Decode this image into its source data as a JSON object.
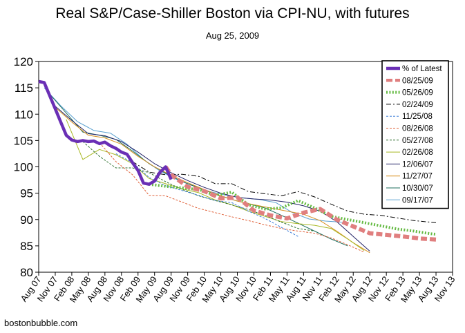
{
  "title": "Real S&P/Case-Shiller Boston via CPI-NU, with futures",
  "subtitle": "Aug 25, 2009",
  "footer": "bostonbubble.com",
  "chart_data": {
    "type": "line",
    "title": "Real S&P/Case-Shiller Boston via CPI-NU, with futures",
    "subtitle": "Aug 25, 2009",
    "xlabel": "",
    "ylabel": "",
    "ylim": [
      80,
      120
    ],
    "yticks": [
      80,
      85,
      90,
      95,
      100,
      105,
      110,
      115,
      120
    ],
    "xticks": [
      "Aug 07",
      "Nov 07",
      "Feb 08",
      "May 08",
      "Aug 08",
      "Nov 08",
      "Feb 09",
      "May 09",
      "Aug 09",
      "Nov 09",
      "Feb 10",
      "May 10",
      "Aug 10",
      "Nov 10",
      "Feb 11",
      "May 11",
      "Aug 11",
      "Nov 11",
      "Feb 12",
      "May 12",
      "Aug 12",
      "Nov 12",
      "Feb 13",
      "May 13",
      "Aug 13",
      "Nov 13"
    ],
    "x_unit": "months since Aug 07",
    "grid": false,
    "legend_position": "top-right",
    "series": [
      {
        "name": "% of Latest",
        "color": "#6a2fb5",
        "style": "solid",
        "width": 4.5,
        "x": [
          0,
          1,
          2,
          3,
          4,
          5,
          6,
          7,
          8,
          9,
          10,
          11,
          12,
          13,
          14,
          15,
          16,
          17,
          18,
          19,
          20,
          21,
          22,
          23,
          24
        ],
        "y": [
          116.2,
          116.0,
          113.5,
          111.0,
          108.5,
          106.0,
          105.1,
          104.8,
          105.0,
          104.8,
          104.9,
          104.4,
          104.7,
          104.0,
          103.5,
          102.8,
          102.4,
          100.8,
          99.3,
          96.9,
          96.7,
          97.3,
          99.0,
          100.0,
          97.6
        ]
      },
      {
        "name": "08/25/09",
        "color": "#e07f7f",
        "style": "dash",
        "width": 6,
        "x": [
          23,
          24,
          27,
          30,
          33,
          36,
          39,
          42,
          45,
          48,
          51,
          54,
          57,
          60,
          63,
          66,
          69,
          72
        ],
        "y": [
          100.0,
          98.5,
          96.2,
          95.4,
          94.0,
          94.2,
          91.7,
          90.8,
          90.2,
          91.3,
          92.0,
          90.0,
          88.7,
          87.4,
          87.1,
          86.8,
          86.4,
          86.2
        ]
      },
      {
        "name": "05/26/09",
        "color": "#66bb44",
        "style": "dot",
        "width": 4,
        "x": [
          20,
          23,
          26,
          29,
          32,
          35,
          38,
          41,
          44,
          47,
          50,
          53,
          56,
          59,
          62,
          65,
          68,
          71,
          72
        ],
        "y": [
          96.7,
          96.3,
          96.0,
          95.7,
          94.6,
          95.2,
          92.8,
          92.0,
          92.2,
          93.6,
          92.2,
          90.6,
          90.0,
          89.4,
          88.8,
          88.2,
          87.8,
          87.3,
          87.2
        ]
      },
      {
        "name": "02/24/09",
        "color": "#000000",
        "style": "dashdot",
        "width": 1,
        "x": [
          17,
          20,
          23,
          26,
          29,
          32,
          35,
          38,
          41,
          44,
          47,
          50,
          53,
          56,
          59,
          62,
          65,
          68,
          71,
          72
        ],
        "y": [
          101.0,
          99.0,
          98.5,
          98.6,
          98.2,
          96.8,
          96.8,
          95.3,
          94.9,
          94.5,
          95.3,
          94.3,
          92.9,
          91.6,
          91.0,
          90.8,
          90.3,
          89.8,
          89.5,
          89.4
        ]
      },
      {
        "name": "11/25/08",
        "color": "#3b7dd8",
        "style": "shortdash",
        "width": 1,
        "x": [
          14,
          17,
          20,
          23,
          26,
          29,
          32,
          35,
          38,
          41,
          44,
          47
        ],
        "y": [
          102.5,
          100.8,
          98.0,
          96.4,
          95.5,
          94.6,
          93.6,
          93.2,
          91.6,
          90.2,
          88.5,
          86.8
        ]
      },
      {
        "name": "08/26/08",
        "color": "#e0623a",
        "style": "shortdash",
        "width": 1,
        "x": [
          11,
          14,
          17,
          20,
          23,
          26,
          29,
          32,
          35,
          38,
          41,
          44,
          47,
          50,
          53,
          56,
          59
        ],
        "y": [
          104.6,
          101.0,
          98.5,
          94.6,
          94.5,
          93.3,
          92.1,
          91.3,
          90.5,
          89.8,
          89.0,
          88.3,
          87.8,
          87.4,
          86.5,
          85.2,
          83.8
        ]
      },
      {
        "name": "05/27/08",
        "color": "#2a6e2a",
        "style": "shortdash",
        "width": 1,
        "x": [
          8,
          11,
          14,
          17,
          20,
          23,
          26,
          29,
          32,
          35,
          38,
          41,
          44,
          47,
          50
        ],
        "y": [
          104.8,
          102.0,
          99.8,
          99.8,
          98.9,
          97.2,
          95.7,
          94.5,
          93.6,
          92.8,
          91.9,
          90.8,
          89.5,
          88.3,
          87.8
        ]
      },
      {
        "name": "02/26/08",
        "color": "#a8b825",
        "style": "solid",
        "width": 1,
        "x": [
          5,
          8,
          11,
          14,
          17,
          20,
          23,
          26,
          29,
          32,
          35,
          38,
          41,
          44,
          47,
          50,
          53,
          56,
          59
        ],
        "y": [
          109.0,
          101.4,
          103.3,
          102.3,
          100.6,
          97.8,
          96.8,
          95.8,
          95.1,
          93.7,
          92.8,
          91.6,
          90.6,
          89.6,
          89.2,
          88.9,
          88.3,
          86.3,
          84.1
        ]
      },
      {
        "name": "12/06/07",
        "color": "#222266",
        "style": "solid",
        "width": 1,
        "x": [
          3,
          6,
          9,
          12,
          15,
          18,
          21,
          24,
          27,
          30,
          33,
          36,
          39,
          42,
          45,
          48,
          51,
          54,
          57,
          60
        ],
        "y": [
          111.5,
          108.8,
          106.3,
          105.9,
          104.8,
          102.8,
          100.6,
          98.9,
          97.4,
          96.1,
          95.0,
          94.2,
          93.9,
          93.7,
          93.3,
          92.6,
          91.6,
          89.6,
          86.8,
          84.0
        ]
      },
      {
        "name": "11/27/07",
        "color": "#d89020",
        "style": "solid",
        "width": 1,
        "x": [
          3,
          6,
          9,
          12,
          15,
          18,
          21,
          24,
          27,
          30,
          33,
          36,
          39,
          42,
          45,
          48,
          51,
          54,
          57,
          60
        ],
        "y": [
          111.3,
          108.5,
          106.0,
          105.5,
          104.3,
          102.0,
          100.0,
          98.4,
          97.0,
          95.7,
          94.5,
          93.5,
          92.8,
          92.2,
          91.6,
          91.0,
          89.8,
          87.8,
          85.6,
          83.7
        ]
      },
      {
        "name": "10/30/07",
        "color": "#1e6e5e",
        "style": "solid",
        "width": 1,
        "x": [
          2,
          5,
          8,
          11,
          14,
          17,
          20,
          23,
          26,
          29,
          32,
          35,
          38,
          41,
          44,
          47,
          50,
          53,
          56
        ],
        "y": [
          113.8,
          110.2,
          106.6,
          106.0,
          105.2,
          103.0,
          100.6,
          98.8,
          97.2,
          96.0,
          94.8,
          93.8,
          93.0,
          92.2,
          90.8,
          89.3,
          87.8,
          86.3,
          85.0
        ]
      },
      {
        "name": "09/17/07",
        "color": "#5aa0d0",
        "style": "solid",
        "width": 1,
        "x": [
          1,
          4,
          7,
          10,
          13,
          16,
          19,
          22,
          25,
          28,
          31,
          34,
          37,
          40,
          43,
          46,
          49,
          52,
          55
        ],
        "y": [
          115.0,
          111.6,
          108.6,
          106.9,
          106.4,
          104.3,
          101.4,
          99.2,
          97.6,
          96.4,
          95.3,
          94.6,
          94.1,
          93.8,
          93.2,
          91.3,
          90.1,
          89.7,
          89.5
        ]
      }
    ]
  }
}
